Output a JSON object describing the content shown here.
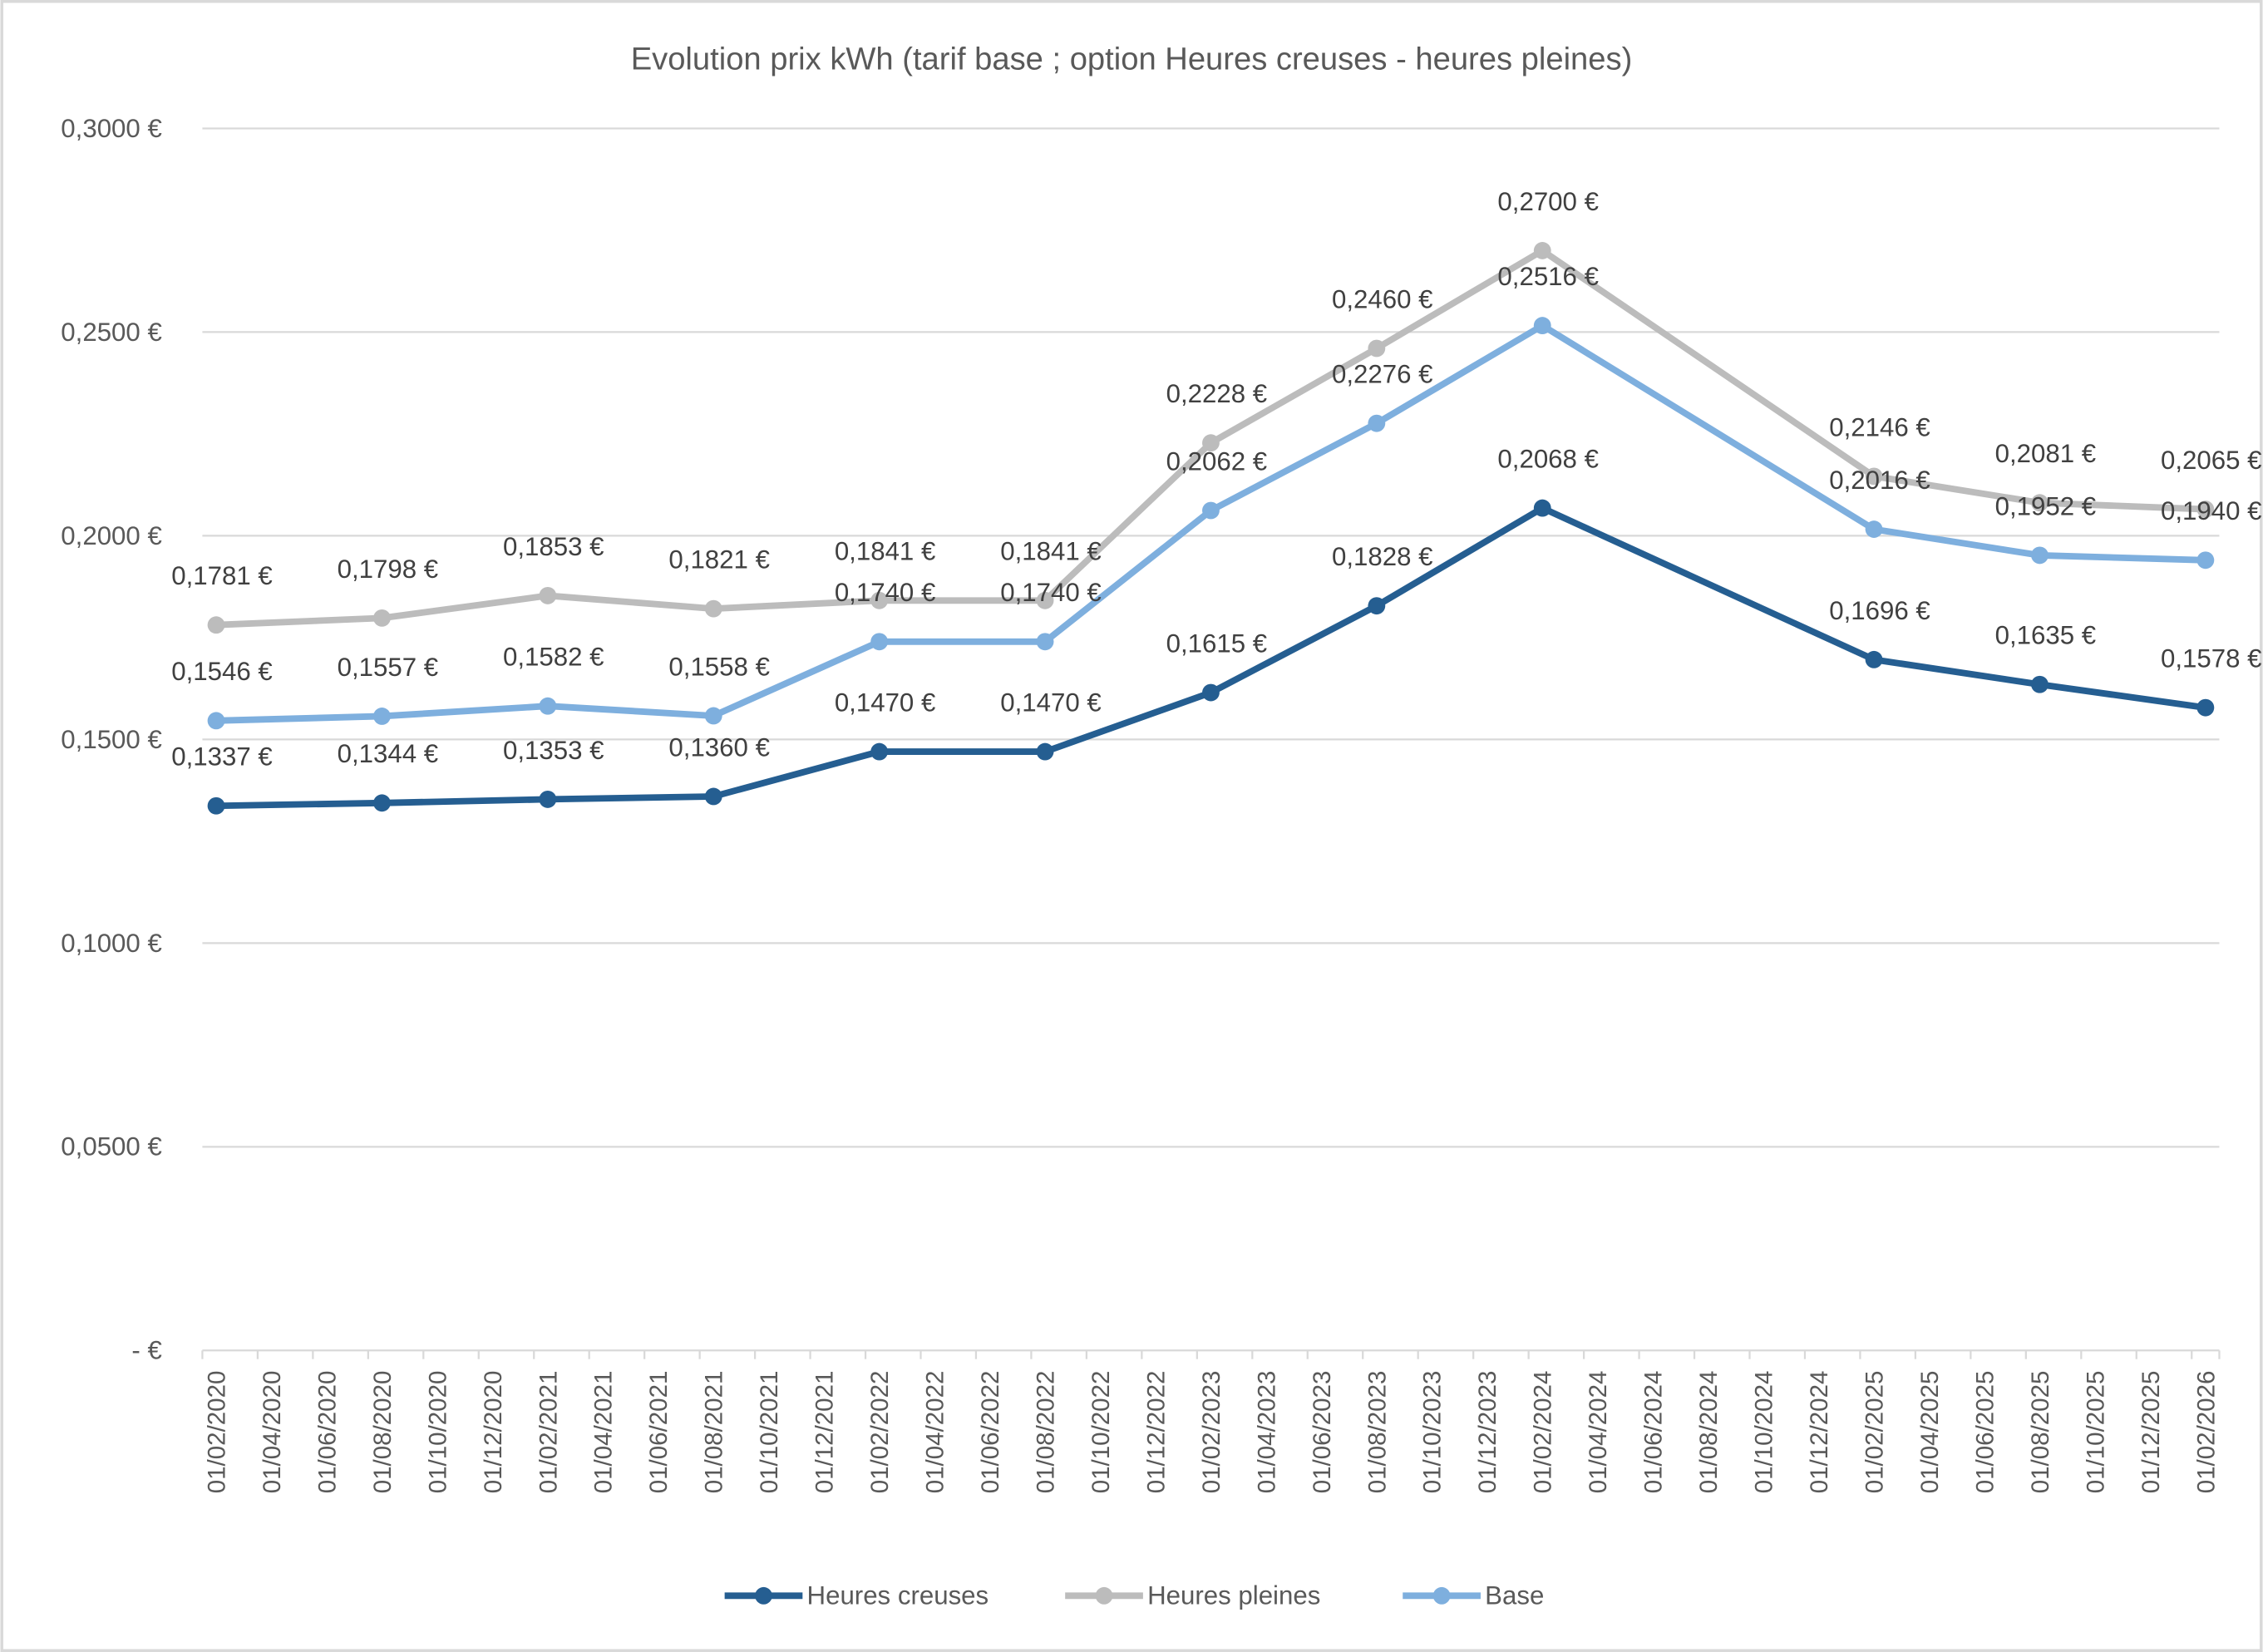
{
  "chart_data": {
    "type": "line",
    "title": "Evolution prix kWh (tarif base ; option Heures creuses - heures pleines)",
    "xlabel": "",
    "ylabel": "",
    "x": [
      "01/02/2020",
      "01/08/2020",
      "01/02/2021",
      "01/08/2021",
      "01/02/2022",
      "01/08/2022",
      "01/02/2023",
      "01/08/2023",
      "01/02/2024",
      "01/02/2025",
      "01/08/2025",
      "01/02/2026"
    ],
    "x_ticks": [
      "01/02/2020",
      "01/04/2020",
      "01/06/2020",
      "01/08/2020",
      "01/10/2020",
      "01/12/2020",
      "01/02/2021",
      "01/04/2021",
      "01/06/2021",
      "01/08/2021",
      "01/10/2021",
      "01/12/2021",
      "01/02/2022",
      "01/04/2022",
      "01/06/2022",
      "01/08/2022",
      "01/10/2022",
      "01/12/2022",
      "01/02/2023",
      "01/04/2023",
      "01/06/2023",
      "01/08/2023",
      "01/10/2023",
      "01/12/2023",
      "01/02/2024",
      "01/04/2024",
      "01/06/2024",
      "01/08/2024",
      "01/10/2024",
      "01/12/2024",
      "01/02/2025",
      "01/04/2025",
      "01/06/2025",
      "01/08/2025",
      "01/10/2025",
      "01/12/2025",
      "01/02/2026"
    ],
    "y_ticks": [
      "-  €",
      "0,0500 €",
      "0,1000 €",
      "0,1500 €",
      "0,2000 €",
      "0,2500 €",
      "0,3000 €"
    ],
    "ylim": [
      0,
      0.3
    ],
    "grid": true,
    "legend_position": "bottom",
    "series": [
      {
        "name": "Heures creuses",
        "color": "#255e91",
        "values": [
          0.1337,
          0.1344,
          0.1353,
          0.136,
          0.147,
          0.147,
          0.1615,
          0.1828,
          0.2068,
          0.1696,
          0.1635,
          0.1578
        ],
        "labels": [
          "0,1337 €",
          "0,1344 €",
          "0,1353 €",
          "0,1360 €",
          "0,1470 €",
          "0,1470 €",
          "0,1615 €",
          "0,1828 €",
          "0,2068 €",
          "0,1696 €",
          "0,1635 €",
          "0,1578 €"
        ]
      },
      {
        "name": "Heures pleines",
        "color": "#bcbcbc",
        "values": [
          0.1781,
          0.1798,
          0.1853,
          0.1821,
          0.1841,
          0.1841,
          0.2228,
          0.246,
          0.27,
          0.2146,
          0.2081,
          0.2065
        ],
        "labels": [
          "0,1781 €",
          "0,1798 €",
          "0,1853 €",
          "0,1821 €",
          "0,1841 €",
          "0,1841 €",
          "0,2228 €",
          "0,2460 €",
          "0,2700 €",
          "0,2146 €",
          "0,2081 €",
          "0,2065 €"
        ]
      },
      {
        "name": "Base",
        "color": "#7eafde",
        "values": [
          0.1546,
          0.1557,
          0.1582,
          0.1558,
          0.174,
          0.174,
          0.2062,
          0.2276,
          0.2516,
          0.2016,
          0.1952,
          0.194
        ],
        "labels": [
          "0,1546 €",
          "0,1557 €",
          "0,1582 €",
          "0,1558 €",
          "0,1740 €",
          "0,1740 €",
          "0,2062 €",
          "0,2276 €",
          "0,2516 €",
          "0,2016 €",
          "0,1952 €",
          "0,1940 €"
        ]
      }
    ]
  }
}
